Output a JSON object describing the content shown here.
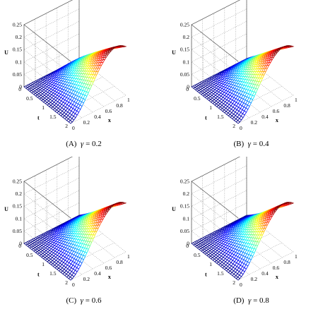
{
  "figure": {
    "panels": [
      {
        "label": "(A)",
        "symbol": "γ",
        "eq": " = ",
        "gamma": "0.2"
      },
      {
        "label": "(B)",
        "symbol": "γ",
        "eq": " = ",
        "gamma": "0.4"
      },
      {
        "label": "(C)",
        "symbol": "γ",
        "eq": " = ",
        "gamma": "0.6"
      },
      {
        "label": "(D)",
        "symbol": "γ",
        "eq": " = ",
        "gamma": "0.8"
      }
    ]
  },
  "chart_data": [
    {
      "type": "surface",
      "xlabel": "x",
      "ylabel": "t",
      "zlabel": "U",
      "xlim": [
        0,
        1
      ],
      "ylim": [
        0,
        2
      ],
      "zlim": [
        0,
        0.25
      ],
      "xticks": [
        "0",
        "0.2",
        "0.4",
        "0.6",
        "0.8",
        "1"
      ],
      "yticks": [
        "0",
        "0.5",
        "1",
        "1.5",
        "2"
      ],
      "zticks": [
        "0",
        "0.05",
        "0.1",
        "0.15",
        "0.2",
        "0.25"
      ],
      "colormap": "jet",
      "grid": true,
      "gamma": 0.2,
      "peak": 0.2,
      "peak_at_x": 1,
      "peak_at_t": 2
    },
    {
      "type": "surface",
      "xlabel": "x",
      "ylabel": "t",
      "zlabel": "U",
      "xlim": [
        0,
        1
      ],
      "ylim": [
        0,
        2
      ],
      "zlim": [
        0,
        0.25
      ],
      "xticks": [
        "0",
        "0.2",
        "0.4",
        "0.6",
        "0.8",
        "1"
      ],
      "yticks": [
        "0",
        "0.5",
        "1",
        "1.5",
        "2"
      ],
      "zticks": [
        "0",
        "0.05",
        "0.1",
        "0.15",
        "0.2",
        "0.25"
      ],
      "colormap": "jet",
      "grid": true,
      "gamma": 0.4,
      "peak": 0.2,
      "peak_at_x": 1,
      "peak_at_t": 2
    },
    {
      "type": "surface",
      "xlabel": "x",
      "ylabel": "t",
      "zlabel": "U",
      "xlim": [
        0,
        1
      ],
      "ylim": [
        0,
        2
      ],
      "zlim": [
        0,
        0.25
      ],
      "xticks": [
        "0",
        "0.2",
        "0.4",
        "0.6",
        "0.8",
        "1"
      ],
      "yticks": [
        "0",
        "0.5",
        "1",
        "1.5",
        "2"
      ],
      "zticks": [
        "0",
        "0.05",
        "0.1",
        "0.15",
        "0.2",
        "0.25"
      ],
      "colormap": "jet",
      "grid": true,
      "gamma": 0.6,
      "peak": 0.2,
      "peak_at_x": 1,
      "peak_at_t": 2
    },
    {
      "type": "surface",
      "xlabel": "x",
      "ylabel": "t",
      "zlabel": "U",
      "xlim": [
        0,
        1
      ],
      "ylim": [
        0,
        2
      ],
      "zlim": [
        0,
        0.25
      ],
      "xticks": [
        "0",
        "0.2",
        "0.4",
        "0.6",
        "0.8",
        "1"
      ],
      "yticks": [
        "0",
        "0.5",
        "1",
        "1.5",
        "2"
      ],
      "zticks": [
        "0",
        "0.05",
        "0.1",
        "0.15",
        "0.2",
        "0.25"
      ],
      "colormap": "jet",
      "grid": true,
      "gamma": 0.8,
      "peak": 0.2,
      "peak_at_x": 1,
      "peak_at_t": 2
    }
  ]
}
